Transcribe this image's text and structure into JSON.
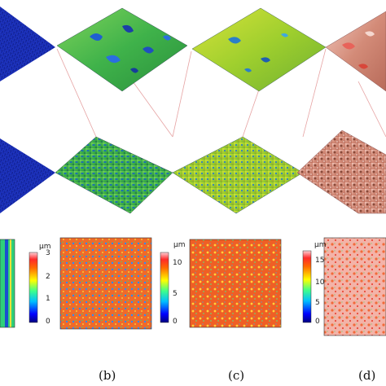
{
  "panel_labels": [
    "(b)",
    "(c)",
    "(d)"
  ],
  "colorbars": [
    {
      "unit": "μm",
      "ticks": [
        "3",
        "2",
        "1",
        "0"
      ]
    },
    {
      "unit": "μm",
      "ticks": [
        "10",
        "5",
        "0"
      ]
    },
    {
      "unit": "μm",
      "ticks": [
        "15",
        "10",
        "5",
        "0"
      ]
    }
  ],
  "colors": {
    "jet": [
      "#00007f",
      "#0000ff",
      "#0080ff",
      "#00ffff",
      "#80ff80",
      "#ffff00",
      "#ff8000",
      "#ff0000",
      "#ffb6c1",
      "#ffffff"
    ],
    "connector": "#e6a3a3",
    "sample_a": "#1a2aa0",
    "sample_b": "#5fc24a",
    "sample_c": "#b6cf2a",
    "sample_d": "#c98a7a"
  }
}
